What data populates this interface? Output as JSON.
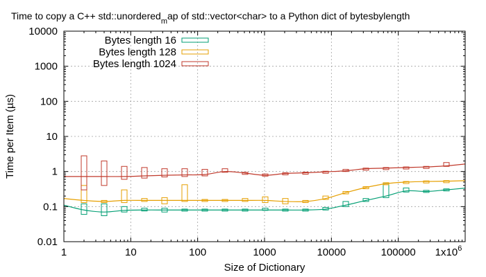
{
  "chart_data": {
    "type": "line",
    "title_parts": [
      "Time to copy a C++ std::unordered",
      "m",
      "ap of std::vector<char> to a Python dict of bytesbylength"
    ],
    "xlabel": "Size of Dictionary",
    "ylabel": "Time per Item (µs)",
    "x_scale": "log",
    "y_scale": "log",
    "xlim": [
      1,
      1000000
    ],
    "ylim": [
      0.01,
      10000
    ],
    "x_ticks": [
      {
        "value": 1,
        "label": "1"
      },
      {
        "value": 10,
        "label": "10"
      },
      {
        "value": 100,
        "label": "100"
      },
      {
        "value": 1000,
        "label": "1000"
      },
      {
        "value": 10000,
        "label": "10000"
      },
      {
        "value": 100000,
        "label": "100000"
      }
    ],
    "x_last_tick": {
      "value": 1000000,
      "base": "1x10",
      "exp": "6"
    },
    "y_ticks": [
      {
        "value": 0.01,
        "label": "0.01"
      },
      {
        "value": 0.1,
        "label": "0.1"
      },
      {
        "value": 1,
        "label": "1"
      },
      {
        "value": 10,
        "label": "10"
      },
      {
        "value": 100,
        "label": "100"
      },
      {
        "value": 1000,
        "label": "1000"
      },
      {
        "value": 10000,
        "label": "10000"
      }
    ],
    "grid": true,
    "legend_position": "top-left",
    "series": [
      {
        "name": "Bytes length 16",
        "color": "#009e73",
        "points": [
          {
            "x": 1,
            "y": 0.11,
            "lo": 0.1,
            "hi": 0.12
          },
          {
            "x": 2,
            "y": 0.08,
            "lo": 0.06,
            "hi": 0.12
          },
          {
            "x": 4,
            "y": 0.07,
            "lo": 0.055,
            "hi": 0.12
          },
          {
            "x": 8,
            "y": 0.078,
            "lo": 0.07,
            "hi": 0.1
          },
          {
            "x": 16,
            "y": 0.08,
            "lo": 0.075,
            "hi": 0.09
          },
          {
            "x": 32,
            "y": 0.08,
            "lo": 0.07,
            "hi": 0.09
          },
          {
            "x": 64,
            "y": 0.08,
            "lo": 0.078,
            "hi": 0.085
          },
          {
            "x": 128,
            "y": 0.08,
            "lo": 0.078,
            "hi": 0.085
          },
          {
            "x": 256,
            "y": 0.08,
            "lo": 0.078,
            "hi": 0.085
          },
          {
            "x": 512,
            "y": 0.08,
            "lo": 0.078,
            "hi": 0.085
          },
          {
            "x": 1024,
            "y": 0.08,
            "lo": 0.078,
            "hi": 0.09
          },
          {
            "x": 2048,
            "y": 0.08,
            "lo": 0.078,
            "hi": 0.085
          },
          {
            "x": 4096,
            "y": 0.08,
            "lo": 0.078,
            "hi": 0.085
          },
          {
            "x": 8192,
            "y": 0.085,
            "lo": 0.08,
            "hi": 0.095
          },
          {
            "x": 16384,
            "y": 0.11,
            "lo": 0.1,
            "hi": 0.14
          },
          {
            "x": 32768,
            "y": 0.15,
            "lo": 0.14,
            "hi": 0.17
          },
          {
            "x": 65536,
            "y": 0.2,
            "lo": 0.18,
            "hi": 0.45
          },
          {
            "x": 131072,
            "y": 0.28,
            "lo": 0.26,
            "hi": 0.34
          },
          {
            "x": 262144,
            "y": 0.27,
            "lo": 0.26,
            "hi": 0.29
          },
          {
            "x": 524288,
            "y": 0.3,
            "lo": 0.28,
            "hi": 0.32
          },
          {
            "x": 1048576,
            "y": 0.34,
            "lo": 0.32,
            "hi": 0.36
          }
        ]
      },
      {
        "name": "Bytes length 128",
        "color": "#e69f00",
        "points": [
          {
            "x": 1,
            "y": 0.17,
            "lo": 0.16,
            "hi": 0.18
          },
          {
            "x": 2,
            "y": 0.15,
            "lo": 0.13,
            "hi": 0.4
          },
          {
            "x": 4,
            "y": 0.14,
            "lo": 0.13,
            "hi": 0.15
          },
          {
            "x": 8,
            "y": 0.15,
            "lo": 0.13,
            "hi": 0.3
          },
          {
            "x": 16,
            "y": 0.15,
            "lo": 0.14,
            "hi": 0.17
          },
          {
            "x": 32,
            "y": 0.15,
            "lo": 0.12,
            "hi": 0.18
          },
          {
            "x": 64,
            "y": 0.15,
            "lo": 0.14,
            "hi": 0.42
          },
          {
            "x": 128,
            "y": 0.15,
            "lo": 0.14,
            "hi": 0.16
          },
          {
            "x": 256,
            "y": 0.15,
            "lo": 0.14,
            "hi": 0.16
          },
          {
            "x": 512,
            "y": 0.15,
            "lo": 0.14,
            "hi": 0.17
          },
          {
            "x": 1024,
            "y": 0.15,
            "lo": 0.13,
            "hi": 0.19
          },
          {
            "x": 2048,
            "y": 0.14,
            "lo": 0.12,
            "hi": 0.17
          },
          {
            "x": 4096,
            "y": 0.14,
            "lo": 0.13,
            "hi": 0.15
          },
          {
            "x": 8192,
            "y": 0.17,
            "lo": 0.16,
            "hi": 0.2
          },
          {
            "x": 16384,
            "y": 0.25,
            "lo": 0.23,
            "hi": 0.27
          },
          {
            "x": 32768,
            "y": 0.35,
            "lo": 0.33,
            "hi": 0.37
          },
          {
            "x": 65536,
            "y": 0.45,
            "lo": 0.42,
            "hi": 0.48
          },
          {
            "x": 131072,
            "y": 0.5,
            "lo": 0.48,
            "hi": 0.52
          },
          {
            "x": 262144,
            "y": 0.52,
            "lo": 0.5,
            "hi": 0.54
          },
          {
            "x": 524288,
            "y": 0.53,
            "lo": 0.51,
            "hi": 0.55
          },
          {
            "x": 1048576,
            "y": 0.55,
            "lo": 0.53,
            "hi": 0.57
          }
        ]
      },
      {
        "name": "Bytes length 1024",
        "color": "#c0392b",
        "points": [
          {
            "x": 1,
            "y": 0.72,
            "lo": 0.7,
            "hi": 0.75
          },
          {
            "x": 2,
            "y": 0.72,
            "lo": 0.3,
            "hi": 2.8
          },
          {
            "x": 4,
            "y": 0.72,
            "lo": 0.4,
            "hi": 2.0
          },
          {
            "x": 8,
            "y": 0.72,
            "lo": 0.6,
            "hi": 1.4
          },
          {
            "x": 16,
            "y": 0.75,
            "lo": 0.65,
            "hi": 1.3
          },
          {
            "x": 32,
            "y": 0.78,
            "lo": 0.7,
            "hi": 1.2
          },
          {
            "x": 64,
            "y": 0.8,
            "lo": 0.72,
            "hi": 1.2
          },
          {
            "x": 128,
            "y": 0.82,
            "lo": 0.75,
            "hi": 1.15
          },
          {
            "x": 256,
            "y": 1.0,
            "lo": 0.95,
            "hi": 1.2
          },
          {
            "x": 512,
            "y": 0.9,
            "lo": 0.85,
            "hi": 0.95
          },
          {
            "x": 1024,
            "y": 0.78,
            "lo": 0.74,
            "hi": 0.85
          },
          {
            "x": 2048,
            "y": 0.88,
            "lo": 0.85,
            "hi": 0.92
          },
          {
            "x": 4096,
            "y": 0.92,
            "lo": 0.88,
            "hi": 0.96
          },
          {
            "x": 8192,
            "y": 0.98,
            "lo": 0.95,
            "hi": 1.02
          },
          {
            "x": 16384,
            "y": 1.05,
            "lo": 1.0,
            "hi": 1.15
          },
          {
            "x": 32768,
            "y": 1.2,
            "lo": 1.15,
            "hi": 1.25
          },
          {
            "x": 65536,
            "y": 1.25,
            "lo": 1.2,
            "hi": 1.3
          },
          {
            "x": 131072,
            "y": 1.3,
            "lo": 1.25,
            "hi": 1.35
          },
          {
            "x": 262144,
            "y": 1.35,
            "lo": 1.3,
            "hi": 1.4
          },
          {
            "x": 524288,
            "y": 1.45,
            "lo": 1.4,
            "hi": 1.8
          },
          {
            "x": 1048576,
            "y": 1.65,
            "lo": 1.55,
            "hi": 1.75
          }
        ]
      }
    ]
  }
}
